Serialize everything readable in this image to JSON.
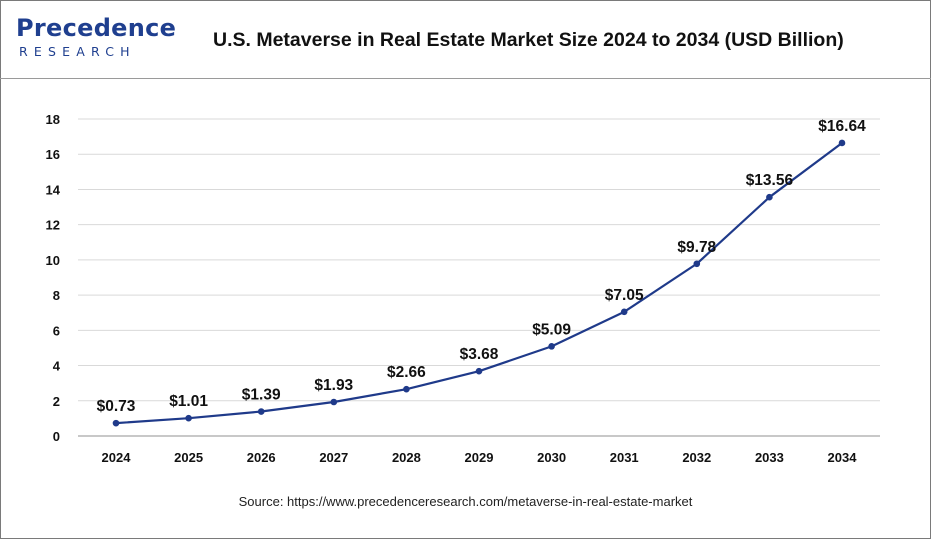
{
  "header": {
    "logo_word": "Precedence",
    "logo_sub": "RESEARCH",
    "title": "U.S. Metaverse in Real Estate Market Size 2024 to 2034 (USD Billion)"
  },
  "colors": {
    "line": "#1f3a8a",
    "brand": "#1f3f8f",
    "grid": "#d9d9d9"
  },
  "chart_data": {
    "type": "line",
    "title": "U.S. Metaverse in Real Estate Market Size 2024 to 2034 (USD Billion)",
    "xlabel": "",
    "ylabel": "",
    "x": [
      "2024",
      "2025",
      "2026",
      "2027",
      "2028",
      "2029",
      "2030",
      "2031",
      "2032",
      "2033",
      "2034"
    ],
    "series": [
      {
        "values": [
          0.73,
          1.01,
          1.39,
          1.93,
          2.66,
          3.68,
          5.09,
          7.05,
          9.78,
          13.56,
          16.64
        ],
        "labels": [
          "$0.73",
          "$1.01",
          "$1.39",
          "$1.93",
          "$2.66",
          "$3.68",
          "$5.09",
          "$7.05",
          "$9.78",
          "$13.56",
          "$16.64"
        ]
      }
    ],
    "ylim": [
      0,
      18
    ],
    "yticks": [
      0,
      2,
      4,
      6,
      8,
      10,
      12,
      14,
      16,
      18
    ],
    "grid": true,
    "legend": "none"
  },
  "source": "Source: https://www.precedenceresearch.com/metaverse-in-real-estate-market"
}
